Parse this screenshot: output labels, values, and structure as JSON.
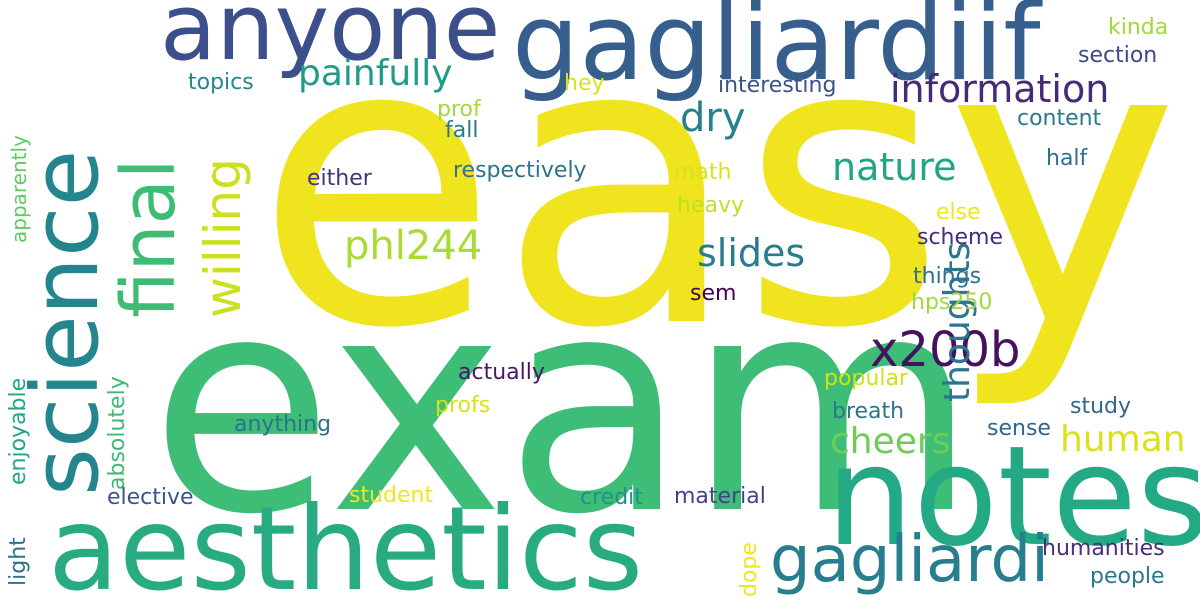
{
  "words": [
    {
      "text": "easy",
      "color": "#f0e41e"
    },
    {
      "text": "exam",
      "color": "#3dbd76"
    },
    {
      "text": "notes",
      "color": "#24a985"
    },
    {
      "text": "aesthetics",
      "color": "#29ab82"
    },
    {
      "text": "science",
      "color": "#25858e"
    },
    {
      "text": "gagliardiif",
      "color": "#365f8d"
    },
    {
      "text": "anyone",
      "color": "#3c4f8a"
    },
    {
      "text": "final",
      "color": "#3dbc74"
    },
    {
      "text": "gagliardi",
      "color": "#277e8e"
    },
    {
      "text": "x200b",
      "color": "#45125f"
    },
    {
      "text": "information",
      "color": "#462a78"
    },
    {
      "text": "painfully",
      "color": "#1e9c89"
    },
    {
      "text": "willing",
      "color": "#cbe11f"
    },
    {
      "text": "thoughts",
      "color": "#2b758e"
    },
    {
      "text": "nature",
      "color": "#21a585"
    },
    {
      "text": "phl244",
      "color": "#a9dc33"
    },
    {
      "text": "slides",
      "color": "#297b8e"
    },
    {
      "text": "cheers",
      "color": "#6dcd59"
    },
    {
      "text": "human",
      "color": "#dbe11e"
    },
    {
      "text": "dry",
      "color": "#27808e"
    },
    {
      "text": "topics",
      "color": "#25868e"
    },
    {
      "text": "interesting",
      "color": "#3b528b"
    },
    {
      "text": "section",
      "color": "#3e4a89"
    },
    {
      "text": "kinda",
      "color": "#a0da39"
    },
    {
      "text": "hey",
      "color": "#dae319"
    },
    {
      "text": "prof",
      "color": "#a3d93a"
    },
    {
      "text": "fall",
      "color": "#297a8e"
    },
    {
      "text": "content",
      "color": "#2a788e"
    },
    {
      "text": "half",
      "color": "#2c718e"
    },
    {
      "text": "either",
      "color": "#45337d"
    },
    {
      "text": "respectively",
      "color": "#2c738e"
    },
    {
      "text": "math",
      "color": "#d7e219"
    },
    {
      "text": "heavy",
      "color": "#c2df23"
    },
    {
      "text": "else",
      "color": "#f0e51c"
    },
    {
      "text": "scheme",
      "color": "#472d7b"
    },
    {
      "text": "things",
      "color": "#2c728e"
    },
    {
      "text": "sem",
      "color": "#440154"
    },
    {
      "text": "hps250",
      "color": "#9fda3a"
    },
    {
      "text": "apparently",
      "color": "#5ec962"
    },
    {
      "text": "enjoyable",
      "color": "#22a785"
    },
    {
      "text": "absolutely",
      "color": "#3bbb75"
    },
    {
      "text": "light",
      "color": "#2c718e"
    },
    {
      "text": "actually",
      "color": "#481769"
    },
    {
      "text": "popular",
      "color": "#d0e11c"
    },
    {
      "text": "breath",
      "color": "#2a768e"
    },
    {
      "text": "study",
      "color": "#31678e"
    },
    {
      "text": "sense",
      "color": "#32658e"
    },
    {
      "text": "anything",
      "color": "#2c718e"
    },
    {
      "text": "profs",
      "color": "#d8e219"
    },
    {
      "text": "elective",
      "color": "#3a548c"
    },
    {
      "text": "student",
      "color": "#f1e51d"
    },
    {
      "text": "credit",
      "color": "#21918c"
    },
    {
      "text": "material",
      "color": "#414487"
    },
    {
      "text": "dope",
      "color": "#f1e51d"
    },
    {
      "text": "humanities",
      "color": "#472f7d"
    },
    {
      "text": "people",
      "color": "#2a778e"
    }
  ]
}
